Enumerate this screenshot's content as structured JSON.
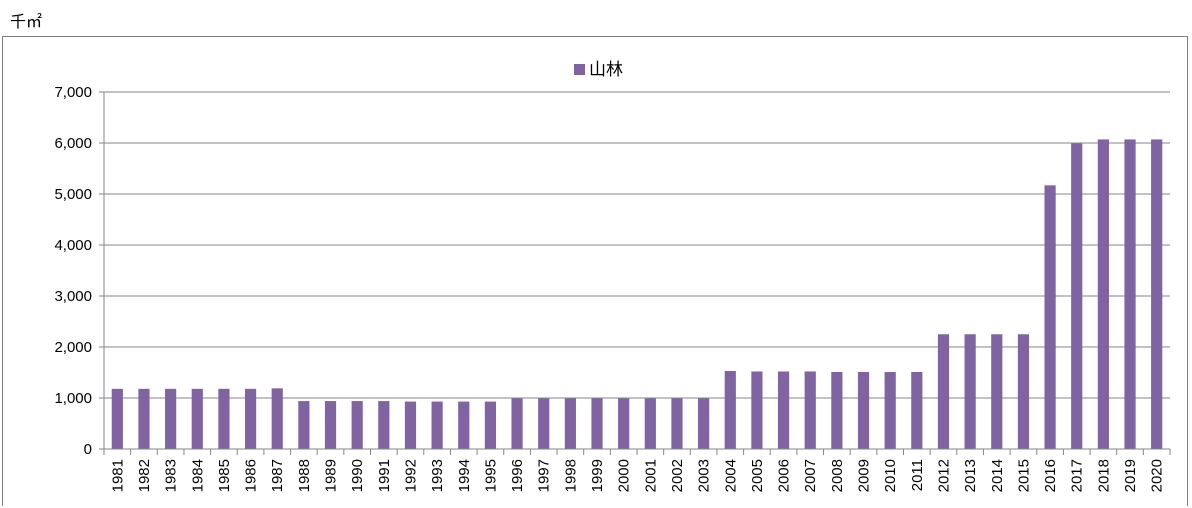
{
  "unit_label": "千㎡",
  "chart_data": {
    "type": "bar",
    "title": "",
    "xlabel": "",
    "ylabel": "",
    "ylim": [
      0,
      7000
    ],
    "yticks": [
      "0",
      "1,000",
      "2,000",
      "3,000",
      "4,000",
      "5,000",
      "6,000",
      "7,000"
    ],
    "ytick_values": [
      0,
      1000,
      2000,
      3000,
      4000,
      5000,
      6000,
      7000
    ],
    "grid": true,
    "legend_position": "top-center",
    "categories": [
      "1981",
      "1982",
      "1983",
      "1984",
      "1985",
      "1986",
      "1987",
      "1988",
      "1989",
      "1990",
      "1991",
      "1992",
      "1993",
      "1994",
      "1995",
      "1996",
      "1997",
      "1998",
      "1999",
      "2000",
      "2001",
      "2002",
      "2003",
      "2004",
      "2005",
      "2006",
      "2007",
      "2008",
      "2009",
      "2010",
      "2011",
      "2012",
      "2013",
      "2014",
      "2015",
      "2016",
      "2017",
      "2018",
      "2019",
      "2020"
    ],
    "series": [
      {
        "name": "山林",
        "color": "#8064a2",
        "values": [
          1180,
          1180,
          1180,
          1180,
          1180,
          1180,
          1190,
          940,
          940,
          940,
          940,
          930,
          930,
          930,
          930,
          990,
          990,
          990,
          990,
          990,
          990,
          990,
          990,
          1530,
          1520,
          1520,
          1520,
          1510,
          1510,
          1510,
          1510,
          2250,
          2250,
          2250,
          2250,
          5170,
          5990,
          6070,
          6070,
          6070
        ]
      }
    ]
  }
}
